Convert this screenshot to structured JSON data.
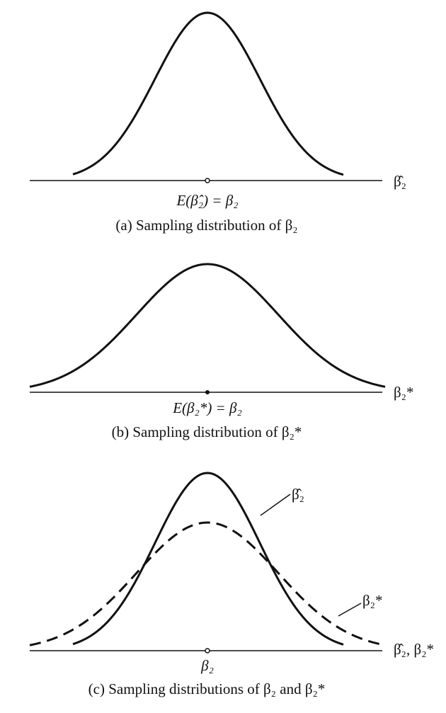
{
  "panels": [
    {
      "axis_label": "β̂₂",
      "center_label": "E(β̂₂) = β₂",
      "caption": "(a) Sampling distribution of β₂"
    },
    {
      "axis_label": "β₂*",
      "center_label": "E(β₂*) = β₂",
      "caption": "(b) Sampling distribution of β₂*"
    },
    {
      "axis_label": "β̂₂, β₂*",
      "center_label": "β₂",
      "caption": "(c) Sampling distributions of β₂ and β₂*",
      "curve_labels": [
        "β̂₂",
        "β₂*"
      ]
    }
  ]
}
